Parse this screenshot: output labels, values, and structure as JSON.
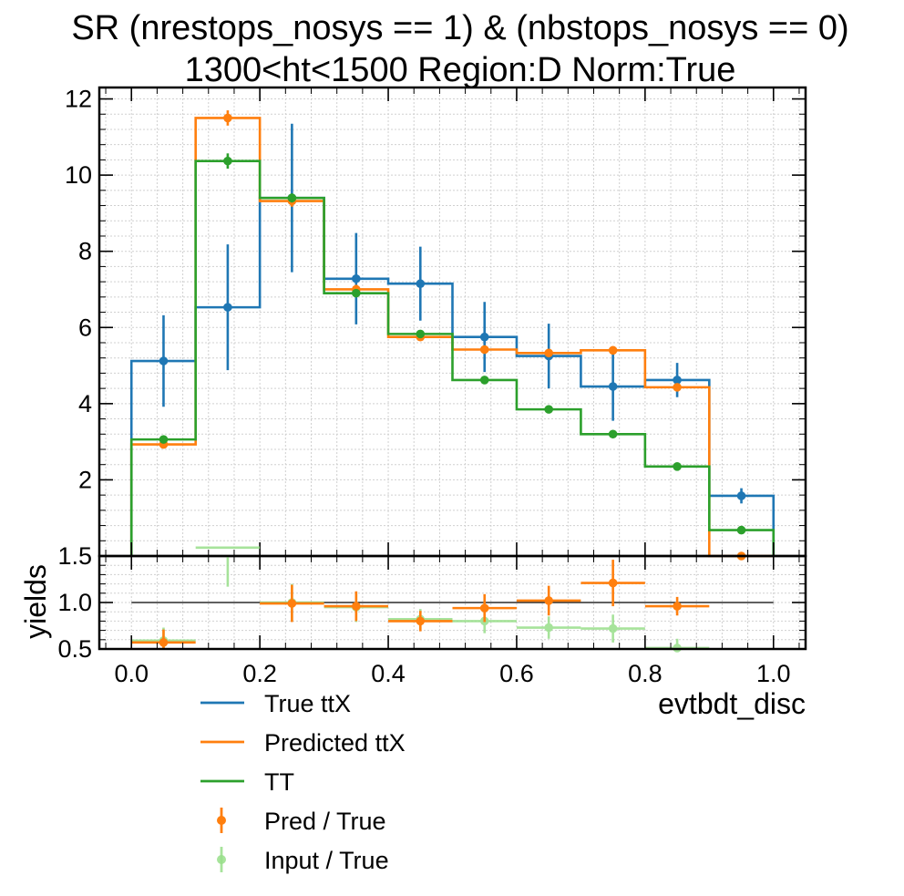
{
  "chart_data": [
    {
      "type": "line",
      "title_line1": "SR (nrestops_nosys == 1) & (nbstops_nosys == 0)",
      "title_line2": "1300<ht<1500 Region:D Norm:True",
      "ylim": [
        0,
        12.3
      ],
      "xlim": [
        -0.05,
        1.05
      ],
      "y_ticks": [
        "0",
        "2",
        "4",
        "6",
        "8",
        "10",
        "12"
      ],
      "grid": true,
      "bin_edges": [
        0.0,
        0.1,
        0.2,
        0.3,
        0.4,
        0.5,
        0.6,
        0.7,
        0.8,
        0.9,
        1.0
      ],
      "series": [
        {
          "name": "True ttX",
          "color": "#1f77b4",
          "values": [
            5.12,
            6.53,
            9.4,
            7.28,
            7.15,
            5.75,
            5.25,
            4.45,
            4.62,
            1.58
          ],
          "errors": [
            1.2,
            1.65,
            1.95,
            1.2,
            0.97,
            0.92,
            0.85,
            0.9,
            0.45,
            0.2
          ]
        },
        {
          "name": "Predicted ttX",
          "color": "#ff7f0e",
          "values": [
            2.93,
            11.5,
            9.32,
            7.0,
            5.75,
            5.42,
            5.33,
            5.4,
            4.43,
            0.0
          ],
          "errors": [
            0.08,
            0.2,
            0.15,
            0.12,
            0.1,
            0.1,
            0.1,
            0.1,
            0.1,
            0.0
          ]
        },
        {
          "name": "TT",
          "color": "#2ca02c",
          "values": [
            3.06,
            10.37,
            9.4,
            6.9,
            5.83,
            4.62,
            3.85,
            3.2,
            2.35,
            0.68
          ],
          "errors": [
            0.06,
            0.2,
            0.12,
            0.1,
            0.08,
            0.07,
            0.05,
            0.05,
            0.04,
            0.03
          ]
        }
      ]
    },
    {
      "type": "scatter",
      "ylabel": "yields",
      "xlabel": "evtbdt_disc",
      "ylim": [
        0.5,
        1.5
      ],
      "xlim": [
        -0.05,
        1.05
      ],
      "y_ticks": [
        "0.5",
        "1.0",
        "1.5"
      ],
      "x_ticks": [
        "0.0",
        "0.2",
        "0.4",
        "0.6",
        "0.8",
        "1.0"
      ],
      "reference_line": 1.0,
      "series": [
        {
          "name": "Pred / True",
          "color": "#ff7f0e",
          "x": [
            0.05,
            0.25,
            0.35,
            0.45,
            0.55,
            0.65,
            0.75,
            0.85
          ],
          "values": [
            0.57,
            0.99,
            0.96,
            0.8,
            0.94,
            1.02,
            1.21,
            0.96
          ],
          "errors": [
            0.14,
            0.2,
            0.16,
            0.11,
            0.15,
            0.16,
            0.25,
            0.1
          ]
        },
        {
          "name": "Input / True",
          "color": "#98df8a",
          "x": [
            0.05,
            0.15,
            0.25,
            0.35,
            0.45,
            0.55,
            0.65,
            0.75,
            0.85
          ],
          "values": [
            0.59,
            1.59,
            1.0,
            0.95,
            0.82,
            0.8,
            0.73,
            0.72,
            0.51
          ],
          "errors": [
            0.14,
            0.42,
            0.2,
            0.16,
            0.11,
            0.13,
            0.12,
            0.15,
            0.1
          ]
        }
      ]
    }
  ],
  "legend": {
    "placement": "below",
    "entries": [
      "True ttX",
      "Predicted ttX",
      "TT",
      "Pred / True",
      "Input / True"
    ]
  }
}
